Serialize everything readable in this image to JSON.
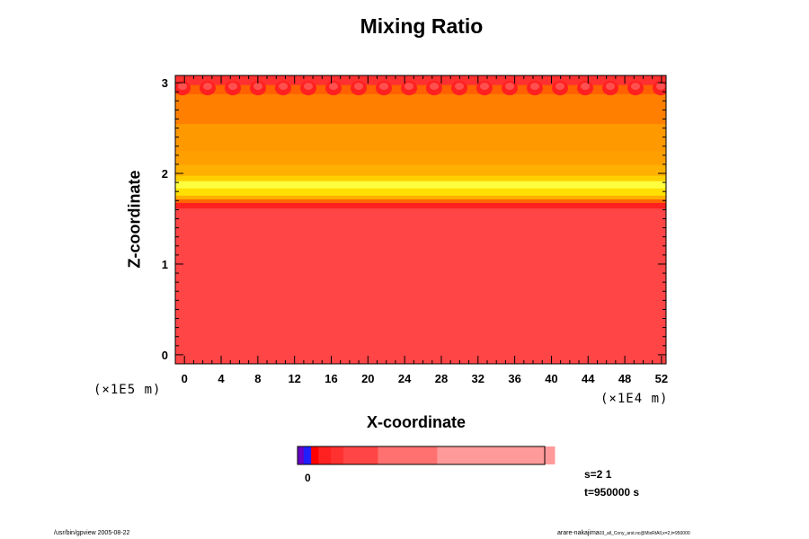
{
  "chart_data": {
    "type": "heatmap",
    "title": "Mixing Ratio",
    "xlabel": "X-coordinate",
    "ylabel": "Z-coordinate",
    "x_unit": "(×1E4 m)",
    "y_unit": "(×1E5 m)",
    "xlim": [
      -1,
      52.5
    ],
    "ylim": [
      -0.1,
      3.08
    ],
    "x_ticks": [
      0,
      4,
      8,
      12,
      16,
      20,
      24,
      28,
      32,
      36,
      40,
      44,
      48,
      52
    ],
    "y_ticks": [
      0,
      1,
      2,
      3
    ],
    "bands": [
      {
        "z0": -0.1,
        "z1": 1.62,
        "color": "#ff4545"
      },
      {
        "z0": 1.62,
        "z1": 1.68,
        "color": "#ff2020"
      },
      {
        "z0": 1.68,
        "z1": 1.72,
        "color": "#ff6a00"
      },
      {
        "z0": 1.72,
        "z1": 1.76,
        "color": "#ffb000"
      },
      {
        "z0": 1.76,
        "z1": 1.84,
        "color": "#ffe000"
      },
      {
        "z0": 1.84,
        "z1": 1.92,
        "color": "#ffff40"
      },
      {
        "z0": 1.92,
        "z1": 1.98,
        "color": "#ffd000"
      },
      {
        "z0": 1.98,
        "z1": 2.1,
        "color": "#ffb000"
      },
      {
        "z0": 2.1,
        "z1": 2.25,
        "color": "#ffa000"
      },
      {
        "z0": 2.25,
        "z1": 2.55,
        "color": "#ff9900"
      },
      {
        "z0": 2.55,
        "z1": 2.88,
        "color": "#ff7f00"
      },
      {
        "z0": 2.88,
        "z1": 2.98,
        "color": "#ff6000"
      },
      {
        "z0": 2.98,
        "z1": 3.08,
        "color": "#ff3030"
      }
    ],
    "colorbar": {
      "label": "0",
      "segments": [
        {
          "frac": 0.025,
          "color": "#6a00c8"
        },
        {
          "frac": 0.03,
          "color": "#2020ff"
        },
        {
          "frac": 0.03,
          "color": "#ff0000"
        },
        {
          "frac": 0.05,
          "color": "#ff2020"
        },
        {
          "frac": 0.05,
          "color": "#ff3030"
        },
        {
          "frac": 0.14,
          "color": "#ff4545"
        },
        {
          "frac": 0.24,
          "color": "#ff7070"
        },
        {
          "frac": 0.475,
          "color": "#ff9a9a"
        }
      ]
    }
  },
  "annotations": {
    "s_label": "s=2 1",
    "t_label": "t=950000 s",
    "footer_left": "/usr/bin/gpview 2005-08-22",
    "footer_right_main": "arare-nakajima",
    "footer_right_small": "03_all_Cony_arst.nc@MixRtAll,x=2,t=950000"
  }
}
